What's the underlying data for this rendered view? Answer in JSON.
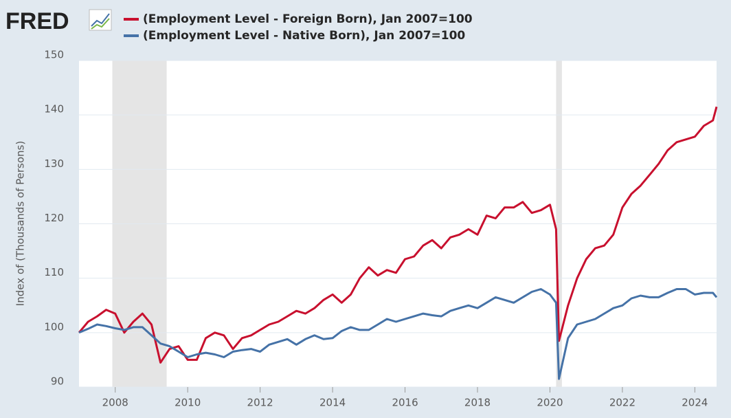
{
  "chart_data": {
    "type": "line",
    "logo": "FRED",
    "ylabel": "Index of (Thousands of Persons)",
    "x": [
      2007.0,
      2007.25,
      2007.5,
      2007.75,
      2008.0,
      2008.25,
      2008.5,
      2008.75,
      2009.0,
      2009.25,
      2009.5,
      2009.75,
      2010.0,
      2010.25,
      2010.5,
      2010.75,
      2011.0,
      2011.25,
      2011.5,
      2011.75,
      2012.0,
      2012.25,
      2012.5,
      2012.75,
      2013.0,
      2013.25,
      2013.5,
      2013.75,
      2014.0,
      2014.25,
      2014.5,
      2014.75,
      2015.0,
      2015.25,
      2015.5,
      2015.75,
      2016.0,
      2016.25,
      2016.5,
      2016.75,
      2017.0,
      2017.25,
      2017.5,
      2017.75,
      2018.0,
      2018.25,
      2018.5,
      2018.75,
      2019.0,
      2019.25,
      2019.5,
      2019.75,
      2020.0,
      2020.17,
      2020.25,
      2020.5,
      2020.75,
      2021.0,
      2021.25,
      2021.5,
      2021.75,
      2022.0,
      2022.25,
      2022.5,
      2022.75,
      2023.0,
      2023.25,
      2023.5,
      2023.75,
      2024.0,
      2024.25,
      2024.5,
      2024.6
    ],
    "series": [
      {
        "name": "(Employment Level - Foreign Born), Jan 2007=100",
        "color": "#c8102e",
        "values": [
          100,
          102,
          103,
          104.2,
          103.5,
          100,
          102,
          103.5,
          101.5,
          94.5,
          97,
          97.5,
          95,
          95,
          99,
          100,
          99.5,
          97,
          99,
          99.5,
          100.5,
          101.5,
          102,
          103,
          104,
          103.5,
          104.5,
          106,
          107,
          105.5,
          107,
          110,
          112,
          110.5,
          111.5,
          111,
          113.5,
          114,
          116,
          117,
          115.5,
          117.5,
          118,
          119,
          118,
          121.5,
          121,
          123,
          123,
          124,
          122,
          122.5,
          123.5,
          119,
          98.5,
          105,
          110,
          113.5,
          115.5,
          116,
          118,
          123,
          125.5,
          127,
          129,
          131,
          133.5,
          135,
          135.5,
          136,
          138,
          139,
          141.5
        ]
      },
      {
        "name": "(Employment Level - Native Born), Jan 2007=100",
        "color": "#4572a7",
        "values": [
          100,
          100.7,
          101.5,
          101.2,
          100.8,
          100.5,
          101,
          101,
          99.5,
          98,
          97.5,
          96.5,
          95.5,
          96,
          96.3,
          96,
          95.5,
          96.5,
          96.8,
          97,
          96.5,
          97.8,
          98.3,
          98.8,
          97.8,
          98.8,
          99.5,
          98.8,
          99,
          100.3,
          101,
          100.5,
          100.5,
          101.5,
          102.5,
          102,
          102.5,
          103,
          103.5,
          103.2,
          103,
          104,
          104.5,
          105,
          104.5,
          105.5,
          106.5,
          106,
          105.5,
          106.5,
          107.5,
          108,
          107,
          105.5,
          91.5,
          99,
          101.5,
          102,
          102.5,
          103.5,
          104.5,
          105,
          106.3,
          106.8,
          106.5,
          106.5,
          107.3,
          108,
          108,
          107,
          107.3,
          107.3,
          106.5
        ]
      }
    ],
    "recessions": [
      [
        2007.92,
        2009.42
      ],
      [
        2020.17,
        2020.33
      ]
    ],
    "xlim": [
      2007,
      2024.6
    ],
    "xticks": [
      2008,
      2010,
      2012,
      2014,
      2016,
      2018,
      2020,
      2022,
      2024
    ],
    "ylim": [
      90,
      150
    ],
    "yticks": [
      90,
      100,
      110,
      120,
      130,
      140,
      150
    ],
    "grid": true
  }
}
